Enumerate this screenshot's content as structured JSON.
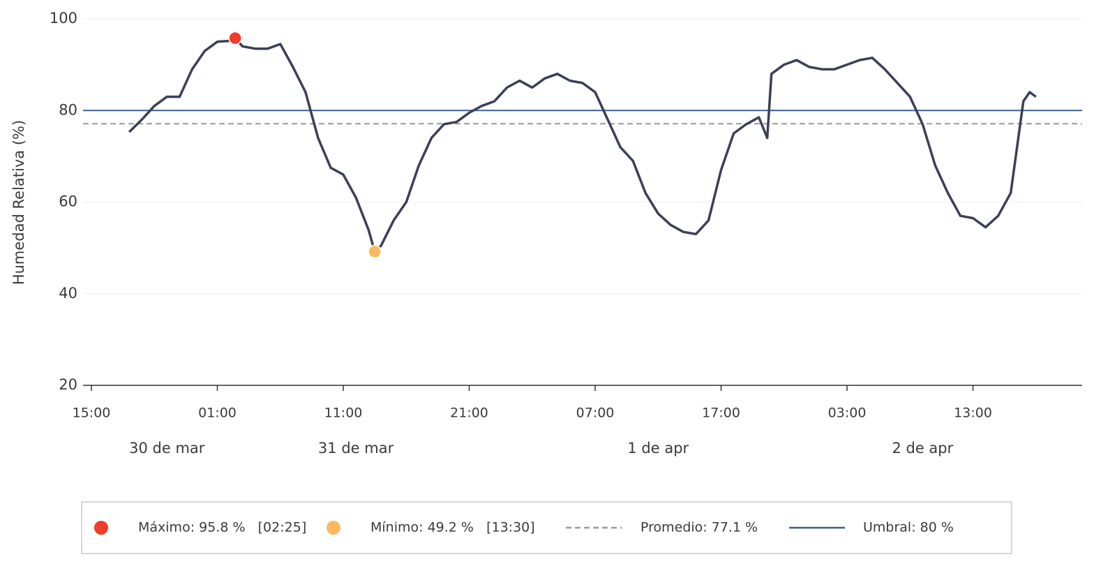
{
  "chart_data": {
    "type": "line",
    "y_label": "Humedad Relativa (%)",
    "ylim": [
      20,
      100
    ],
    "yticks": [
      20,
      40,
      60,
      80,
      100
    ],
    "grid": true,
    "xlim": [
      "03-30T15:00",
      "04-02T21:40"
    ],
    "xticks": [
      {
        "value": "03-30T15:00",
        "label": "15:00"
      },
      {
        "value": "03-31T01:00",
        "label": "01:00"
      },
      {
        "value": "03-31T11:00",
        "label": "11:00"
      },
      {
        "value": "03-31T21:00",
        "label": "21:00"
      },
      {
        "value": "04-01T07:00",
        "label": "07:00"
      },
      {
        "value": "04-01T17:00",
        "label": "17:00"
      },
      {
        "value": "04-02T03:00",
        "label": "03:00"
      },
      {
        "value": "04-02T13:00",
        "label": "13:00"
      }
    ],
    "day_labels": [
      {
        "value": "03-30T21:00",
        "label": "30 de mar"
      },
      {
        "value": "03-31T12:00",
        "label": "31 de mar"
      },
      {
        "value": "04-01T12:00",
        "label": "1 de apr"
      },
      {
        "value": "04-02T09:00",
        "label": "2 de apr"
      }
    ],
    "x": [
      "03-30T18:00",
      "03-30T19:00",
      "03-30T20:00",
      "03-30T21:00",
      "03-30T22:00",
      "03-30T23:00",
      "03-31T00:00",
      "03-31T01:00",
      "03-31T02:00",
      "03-31T02:25",
      "03-31T03:00",
      "03-31T04:00",
      "03-31T05:00",
      "03-31T06:00",
      "03-31T07:00",
      "03-31T08:00",
      "03-31T09:00",
      "03-31T10:00",
      "03-31T11:00",
      "03-31T12:00",
      "03-31T13:00",
      "03-31T13:30",
      "03-31T14:00",
      "03-31T15:00",
      "03-31T16:00",
      "03-31T17:00",
      "03-31T18:00",
      "03-31T19:00",
      "03-31T20:00",
      "03-31T21:00",
      "03-31T22:00",
      "03-31T23:00",
      "04-01T00:00",
      "04-01T01:00",
      "04-01T02:00",
      "04-01T03:00",
      "04-01T04:00",
      "04-01T05:00",
      "04-01T06:00",
      "04-01T07:00",
      "04-01T08:00",
      "04-01T09:00",
      "04-01T10:00",
      "04-01T11:00",
      "04-01T12:00",
      "04-01T13:00",
      "04-01T14:00",
      "04-01T15:00",
      "04-01T16:00",
      "04-01T17:00",
      "04-01T18:00",
      "04-01T19:00",
      "04-01T20:00",
      "04-01T20:40",
      "04-01T21:00",
      "04-01T22:00",
      "04-01T23:00",
      "04-02T00:00",
      "04-02T01:00",
      "04-02T02:00",
      "04-02T03:00",
      "04-02T04:00",
      "04-02T05:00",
      "04-02T06:00",
      "04-02T07:00",
      "04-02T08:00",
      "04-02T09:00",
      "04-02T10:00",
      "04-02T11:00",
      "04-02T12:00",
      "04-02T13:00",
      "04-02T14:00",
      "04-02T15:00",
      "04-02T16:00",
      "04-02T17:00",
      "04-02T17:30",
      "04-02T18:00"
    ],
    "series": [
      {
        "color": "#3a4057",
        "values": [
          75.3,
          78,
          81,
          83,
          83,
          89,
          93,
          95,
          95.2,
          95.8,
          94,
          93.5,
          93.5,
          94.5,
          89.5,
          84,
          74,
          67.5,
          66,
          61,
          54,
          49.2,
          50.5,
          56,
          60,
          68,
          74,
          77,
          77.5,
          79.5,
          81,
          82,
          85,
          86.5,
          85,
          87,
          88,
          86.5,
          86,
          84,
          78,
          72,
          69,
          62,
          57.5,
          55,
          53.5,
          53,
          56,
          67,
          75,
          77,
          78.5,
          74,
          88,
          90,
          91,
          89.5,
          89,
          89,
          90,
          91,
          91.5,
          89,
          86,
          83,
          77,
          68,
          62,
          57,
          56.5,
          54.5,
          57,
          62,
          82,
          84,
          83
        ]
      }
    ],
    "reference_lines": [
      {
        "label": "Promedio: 77.1 %",
        "value": 77.1,
        "color": "#999999",
        "style": "dashed"
      },
      {
        "label": "Umbral: 80 %",
        "value": 80,
        "color": "#3a5f8f",
        "style": "solid"
      }
    ],
    "markers": [
      {
        "label": "Máximo: 95.8 %   [02:25]",
        "x": "03-31T02:25",
        "value": 95.8,
        "color": "#f03c28"
      },
      {
        "label": "Mínimo: 49.2 %   [13:30]",
        "x": "03-31T13:30",
        "value": 49.2,
        "color": "#fbb95e"
      }
    ]
  }
}
